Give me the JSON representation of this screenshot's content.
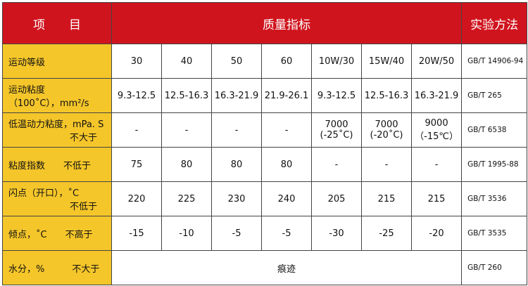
{
  "header": {
    "item": "项　　目",
    "quality": "质量指标",
    "method": "实验方法"
  },
  "rows": [
    {
      "label": "运动等级",
      "sub": "",
      "values": [
        "30",
        "40",
        "50",
        "60",
        "10W/30",
        "15W/40",
        "20W/50"
      ],
      "method": "GB/T 14906-94"
    },
    {
      "label": "运动粘度",
      "sub2": "（100˚C），mm²/s",
      "values": [
        "9.3-12.5",
        "12.5-16.3",
        "16.3-21.9",
        "21.9-26.1",
        "9.3-12.5",
        "12.5-16.3",
        "16.3-21.9"
      ],
      "method": "GB/T 265"
    },
    {
      "label": "低温动力粘度，mPa. S",
      "sub": "不大于",
      "values": [
        "-",
        "-",
        "-",
        "-",
        "7000",
        "7000",
        "9000"
      ],
      "values2": [
        "",
        "",
        "",
        "",
        "(-25˚C)",
        "(-20˚C)",
        "（-15℃）"
      ],
      "method": "GB/T 6538"
    },
    {
      "label": "粘度指数　　不低于",
      "values": [
        "75",
        "80",
        "80",
        "80",
        "-",
        "-",
        "-"
      ],
      "method": "GB/T 1995-88"
    },
    {
      "label": "闪点（开口），˚C",
      "sub": "不低于",
      "values": [
        "220",
        "225",
        "230",
        "240",
        "205",
        "215",
        "215"
      ],
      "method": "GB/T 3536"
    },
    {
      "label": "倾点，˚C　　不高于",
      "values": [
        "-15",
        "-10",
        "-5",
        "-5",
        "-30",
        "-25",
        "-20"
      ],
      "method": "GB/T 3535"
    },
    {
      "label": "水分，%　　　不大于",
      "merged": "痕迹",
      "method": "GB/T 260"
    }
  ]
}
